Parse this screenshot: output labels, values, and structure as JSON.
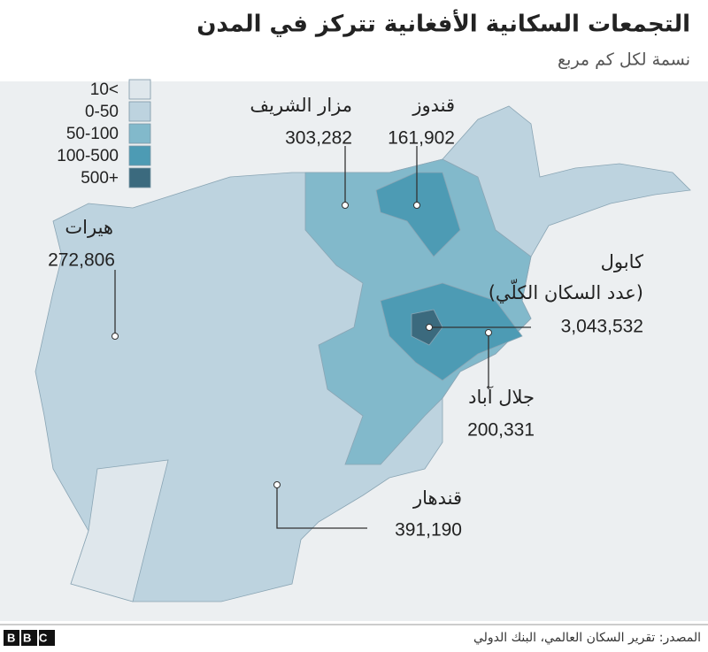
{
  "header": {
    "title": "التجمعات السكانية الأفغانية تتركز في المدن",
    "subtitle": "نسمة لكل كم مربع"
  },
  "legend": {
    "items": [
      {
        "label": "10<",
        "color": "#dfe7ec"
      },
      {
        "label": "0-50",
        "color": "#bdd3df"
      },
      {
        "label": "50-100",
        "color": "#82b9cb"
      },
      {
        "label": "100-500",
        "color": "#4d9bb4"
      },
      {
        "label": "500+",
        "color": "#3b6a7e"
      }
    ]
  },
  "cities": [
    {
      "name": "مزار الشريف",
      "population": "303,282"
    },
    {
      "name": "قندوز",
      "population": "161,902"
    },
    {
      "name": "هيرات",
      "population": "272,806"
    },
    {
      "name": "كابول",
      "note": "(عدد السكان الكلّي)",
      "population": "3,043,532"
    },
    {
      "name": "جلال آباد",
      "population": "200,331"
    },
    {
      "name": "قندهار",
      "population": "391,190"
    }
  ],
  "footer": {
    "source": "المصدر: تقرير السكان العالمي، البنك الدولي",
    "logo": "BBC"
  }
}
